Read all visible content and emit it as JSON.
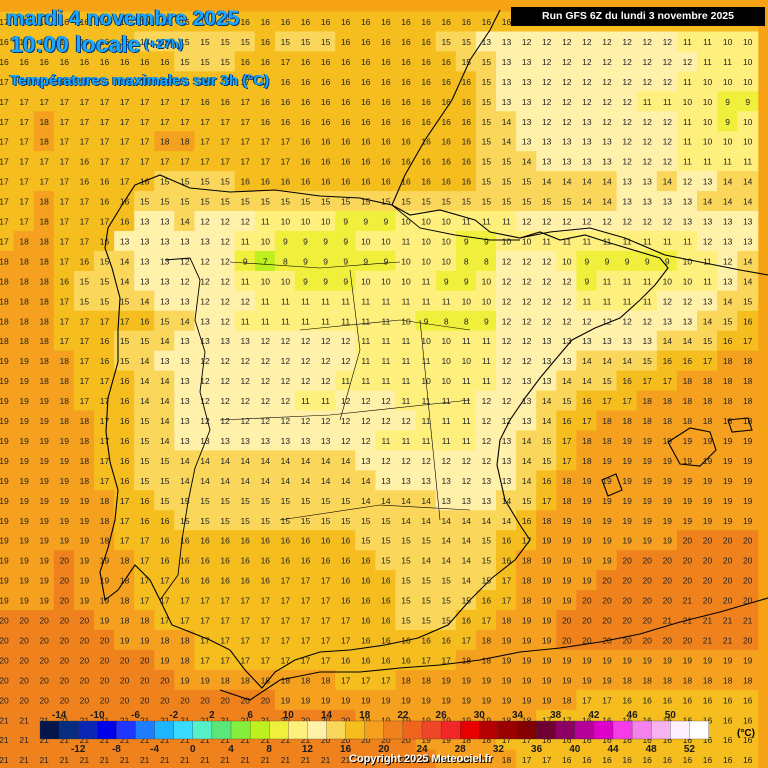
{
  "header": {
    "date": "mardi 4 novembre 2025",
    "time": "10:00 locale",
    "offset": "(+27h)",
    "variable": "Températures maximales sur 3h (°C)"
  },
  "run_info": "Run GFS 6Z du lundi 3 novembre 2025",
  "copyright": "Copyright 2025 Meteociel.fr",
  "legend": {
    "unit": "(°C)",
    "upper_labels": [
      "-14",
      "-10",
      "-6",
      "-2",
      "2",
      "6",
      "10",
      "14",
      "18",
      "22",
      "26",
      "30",
      "34",
      "38",
      "42",
      "46",
      "50"
    ],
    "lower_labels": [
      "-12",
      "-8",
      "-4",
      "0",
      "4",
      "8",
      "12",
      "16",
      "20",
      "24",
      "28",
      "32",
      "36",
      "40",
      "44",
      "48",
      "52"
    ],
    "colors": [
      "#05164d",
      "#072d7e",
      "#0a26b4",
      "#0000e8",
      "#1f36ff",
      "#1f7dff",
      "#1fb4ff",
      "#39dcff",
      "#55f0c8",
      "#5ae678",
      "#84ef3c",
      "#bdf01e",
      "#f0f03c",
      "#fff07d",
      "#fff0aa",
      "#fad75a",
      "#f5be1e",
      "#f5a01e",
      "#f0821e",
      "#f0641e",
      "#f04628",
      "#f02828",
      "#e60000",
      "#b40000",
      "#9b0000",
      "#820000",
      "#6e0032",
      "#8c0064",
      "#b40096",
      "#dc00c8",
      "#f53ce6",
      "#f582eb",
      "#f5b4f0",
      "#fff0ff",
      "#ffffff"
    ]
  },
  "grid_rows": [
    "17 17 16 16 16 16 16 16 16 16 16 16 16 16 16 16 16 16 16 16 16 16 16 16 16 16 16 16 16 16 16 16 16 16 16 16 16 16",
    "16 16 16 16 16 16 16 15 15 15 15 15 15 16 15 15 15 16 16 16 16 16 15 15 13 13 12 12 12 12 12 12 12 12 11 11 10 10",
    "16 16 16 16 16 16 16 16 16 15 15 15 16 16 17 16 16 16 16 16 16 16 16 15 15 13 13 12 12 12 12 12 12 12 12 11 11 10",
    "17 17 17 17 17 16 16 16 16 16 16 16 17 17 16 16 16 16 16 16 16 16 16 16 15 13 13 12 12 12 12 12 12 12 11 10 10 10",
    "17 17 17 17 17 17 17 17 17 17 16 16 17 16 16 16 16 16 16 16 16 16 16 16 15 13 13 12 12 12 12 12 11 11 10 10 9 9",
    "17 17 18 17 17 17 17 17 17 17 17 17 17 16 16 16 16 16 16 16 16 16 16 16 15 14 13 12 12 13 12 12 12 12 11 10 9 10",
    "17 17 18 17 17 17 17 17 18 18 17 17 17 17 17 16 16 16 16 16 16 16 16 16 15 14 13 13 13 13 13 12 12 12 11 10 10 10",
    "17 17 17 17 16 17 17 17 17 17 17 17 17 17 17 16 16 16 16 16 16 16 16 16 15 15 14 13 13 13 13 12 12 12 11 11 11 11",
    "17 17 17 17 16 16 17 16 15 15 15 15 16 16 16 16 16 16 16 16 16 16 16 16 15 15 15 14 14 14 14 13 13 14 12 13 14 14",
    "17 17 18 17 17 16 16 15 15 15 15 15 15 15 15 15 15 15 15 15 15 15 15 15 15 15 15 15 15 14 14 13 13 13 13 14 14 14",
    "17 17 18 17 17 17 16 13 13 14 12 12 12 11 10 10 10 9 9 9 10 10 10 11 11 11 12 12 12 12 12 12 12 12 13 13 13 13",
    "17 18 18 17 17 16 13 13 13 13 13 12 11 10 9 9 9 9 10 10 11 10 10 9 9 10 10 11 11 11 11 11 11 11 11 12 13 13",
    "18 18 18 17 16 15 14 13 13 12 12 12 9 7 8 9 9 9 9 9 10 10 10 8 8 12 12 12 10 9 9 9 9 9 10 11 12 14",
    "18 18 18 16 15 15 14 13 13 12 12 12 11 10 10 9 9 9 10 10 10 11 9 9 10 12 12 12 12 9 11 11 11 10 10 11 13 14",
    "18 18 18 17 15 15 15 14 13 13 12 12 12 11 11 11 11 11 11 11 11 11 11 10 10 12 12 12 12 11 11 11 11 12 12 13 14 15",
    "18 18 18 17 17 17 17 16 15 14 13 12 11 11 11 11 11 11 11 11 10 9 8 8 9 12 12 12 12 12 12 12 12 13 13 14 15 16",
    "18 18 18 17 17 16 15 15 14 13 13 13 13 12 12 12 12 12 11 11 11 10 10 11 11 12 12 13 13 13 13 13 13 14 14 15 16 17",
    "19 19 18 18 17 16 15 14 13 13 12 12 12 12 12 12 12 12 11 11 11 11 10 10 11 12 12 13 13 14 14 14 15 16 16 17 18 18",
    "19 19 18 18 17 17 16 14 14 13 12 12 12 12 12 12 12 11 11 11 11 10 10 11 11 12 13 13 14 14 15 16 17 17 18 18 18 18",
    "19 19 19 18 17 17 16 14 14 13 12 12 12 12 12 11 11 12 12 12 11 11 11 11 12 12 13 14 15 16 17 17 18 18 18 18 18 18",
    "19 19 19 18 18 17 16 15 14 13 12 12 12 12 12 12 12 12 12 12 12 11 11 11 12 12 13 14 16 17 18 18 18 18 18 18 18 18",
    "19 19 19 19 18 17 16 15 14 13 13 13 13 13 13 13 13 12 12 11 11 11 11 11 12 13 14 15 17 18 18 19 19 19 19 19 19 19",
    "19 19 19 19 18 17 16 15 15 14 14 14 14 14 14 14 14 14 13 12 12 12 12 12 12 13 14 15 17 18 19 19 19 19 19 19 19 19",
    "19 19 19 19 18 17 16 15 15 14 14 14 14 14 14 14 14 14 14 13 13 13 13 12 13 13 14 16 18 19 19 19 19 19 19 19 19 19",
    "19 19 19 19 19 18 17 16 15 15 15 15 15 15 15 15 15 15 14 14 14 14 13 13 13 14 15 17 18 19 19 19 19 19 19 19 19 19",
    "19 19 19 19 19 18 17 16 16 15 15 15 15 15 15 15 15 15 15 15 14 14 14 14 14 14 16 18 19 19 19 19 19 19 19 19 19 19",
    "19 19 19 19 19 18 17 17 16 16 16 16 16 16 16 16 16 16 15 15 15 15 14 14 15 16 17 19 19 19 19 19 19 19 20 20 20 20",
    "19 19 19 20 19 19 18 17 16 16 16 16 16 16 16 16 16 16 16 15 15 14 14 14 15 16 18 19 19 19 19 20 20 20 20 20 20 20",
    "19 19 19 20 19 19 18 17 17 16 16 16 16 16 17 17 17 16 16 16 15 15 15 14 15 17 18 19 19 19 20 20 20 20 20 20 20 20",
    "19 19 19 20 19 19 18 17 17 17 17 17 17 17 17 17 17 16 16 16 15 15 15 15 16 17 18 19 19 20 20 20 20 20 21 20 20 20",
    "20 20 20 20 20 19 18 18 17 17 17 17 17 17 17 17 17 17 16 16 15 15 15 16 17 18 19 19 20 20 20 20 20 21 21 21 21 21",
    "20 20 20 20 20 20 19 19 18 18 17 17 17 17 17 17 17 17 16 16 16 16 16 17 18 19 19 19 20 20 20 20 20 20 20 21 21 20",
    "20 20 20 20 20 20 20 20 19 18 17 17 17 17 17 17 17 16 16 16 16 17 17 18 18 19 19 19 19 19 19 19 19 19 19 19 19 19",
    "20 20 20 20 20 20 20 20 20 19 19 18 18 18 18 18 18 17 17 17 18 18 19 19 19 19 19 19 19 19 19 18 18 18 18 18 18 18",
    "20 20 20 20 20 20 20 20 20 20 20 20 20 20 19 19 19 19 19 19 19 19 19 19 19 19 19 19 18 17 17 16 16 16 16 16 16 16",
    "21 21 21 21 21 21 21 21 21 21 21 21 21 21 20 20 20 20 19 19 19 19 19 19 19 18 18 17 17 16 16 16 16 16 16 16 16 16",
    "21 21 21 21 21 21 21 21 21 21 21 21 21 21 21 21 20 20 20 20 20 19 19 18 18 17 17 16 16 16 16 16 16 16 16 16 16 16",
    "21 21 21 21 21 21 21 21 21 21 21 21 21 21 21 21 21 21 21 21 20 20 19 19 18 18 17 17 16 16 16 16 16 16 16 16 16 16"
  ]
}
